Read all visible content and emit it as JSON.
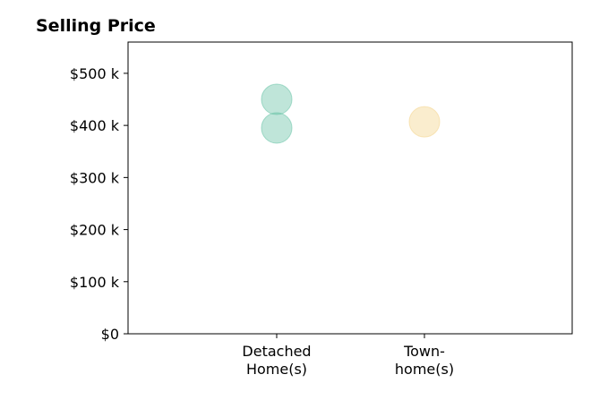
{
  "chart_data": {
    "type": "scatter",
    "title": "Selling Price",
    "xlabel": "",
    "ylabel": "",
    "categories": [
      [
        "Detached",
        "Home(s)"
      ],
      [
        "Town-",
        "home(s)"
      ]
    ],
    "points": [
      {
        "category_index": 0,
        "value": 450000,
        "color": "#66c2a5"
      },
      {
        "category_index": 0,
        "value": 395000,
        "color": "#66c2a5"
      },
      {
        "category_index": 1,
        "value": 407000,
        "color": "#f4d38a"
      }
    ],
    "ylim": [
      0,
      560000
    ],
    "y_ticks": [
      {
        "value": 0,
        "label": "$0"
      },
      {
        "value": 100000,
        "label": "$100 k"
      },
      {
        "value": 200000,
        "label": "$200 k"
      },
      {
        "value": 300000,
        "label": "$300 k"
      },
      {
        "value": 400000,
        "label": "$400 k"
      },
      {
        "value": 500000,
        "label": "$500 k"
      }
    ],
    "grid": false,
    "legend": "none",
    "colors": {
      "detached": "#66c2a5",
      "townhome": "#f4d38a",
      "axis": "#000000"
    }
  }
}
